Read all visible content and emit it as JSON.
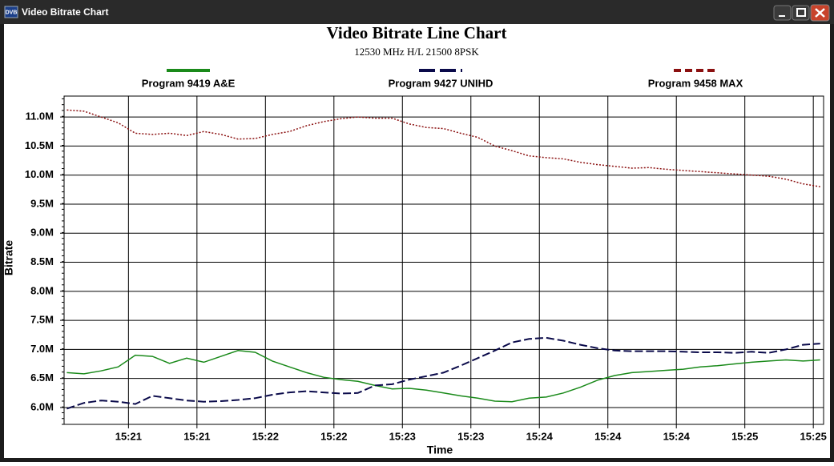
{
  "window": {
    "icon": "DVB",
    "title": "Video Bitrate Chart"
  },
  "chart_data": {
    "type": "line",
    "title": "Video Bitrate Line Chart",
    "subtitle": "12530 MHz H/L 21500 8PSK",
    "x_label": "Time",
    "y_label": "Bitrate",
    "grid": true,
    "xlim": [
      0.06,
      11.15
    ],
    "xticks": [
      {
        "value": 1,
        "label": "15:21"
      },
      {
        "value": 2,
        "label": "15:21"
      },
      {
        "value": 3,
        "label": "15:22"
      },
      {
        "value": 4,
        "label": "15:22"
      },
      {
        "value": 5,
        "label": "15:23"
      },
      {
        "value": 6,
        "label": "15:23"
      },
      {
        "value": 7,
        "label": "15:24"
      },
      {
        "value": 8,
        "label": "15:24"
      },
      {
        "value": 9,
        "label": "15:24"
      },
      {
        "value": 10,
        "label": "15:25"
      },
      {
        "value": 11,
        "label": "15:25"
      }
    ],
    "ylim": [
      5.71,
      11.36
    ],
    "yticks": [
      {
        "value": 6,
        "label": "6.0M"
      },
      {
        "value": 6.5,
        "label": "6.5M"
      },
      {
        "value": 7,
        "label": "7.0M"
      },
      {
        "value": 7.5,
        "label": "7.5M"
      },
      {
        "value": 8,
        "label": "8.0M"
      },
      {
        "value": 8.5,
        "label": "8.5M"
      },
      {
        "value": 9,
        "label": "9.0M"
      },
      {
        "value": 9.5,
        "label": "9.5M"
      },
      {
        "value": 10,
        "label": "10.0M"
      },
      {
        "value": 10.5,
        "label": "10.5M"
      },
      {
        "value": 11,
        "label": "11.0M"
      }
    ],
    "x": [
      0.1,
      0.35,
      0.6,
      0.85,
      1.1,
      1.35,
      1.6,
      1.85,
      2.1,
      2.35,
      2.6,
      2.85,
      3.1,
      3.35,
      3.6,
      3.85,
      4.1,
      4.35,
      4.6,
      4.85,
      5.1,
      5.35,
      5.6,
      5.85,
      6.1,
      6.35,
      6.6,
      6.85,
      7.1,
      7.35,
      7.6,
      7.85,
      8.1,
      8.35,
      8.6,
      8.85,
      9.1,
      9.35,
      9.6,
      9.85,
      10.1,
      10.35,
      10.6,
      10.85,
      11.1
    ],
    "series": [
      {
        "name": "Program 9419 A&E",
        "color": "#1a8a1a",
        "dash": "solid",
        "values": [
          6.6,
          6.58,
          6.63,
          6.7,
          6.9,
          6.88,
          6.76,
          6.85,
          6.78,
          6.88,
          6.98,
          6.95,
          6.8,
          6.7,
          6.6,
          6.52,
          6.48,
          6.45,
          6.38,
          6.32,
          6.33,
          6.3,
          6.25,
          6.2,
          6.16,
          6.11,
          6.1,
          6.16,
          6.18,
          6.25,
          6.35,
          6.47,
          6.55,
          6.6,
          6.62,
          6.64,
          6.66,
          6.7,
          6.72,
          6.75,
          6.78,
          6.8,
          6.82,
          6.8,
          6.82
        ]
      },
      {
        "name": "Program 9427 UNIHD",
        "color": "#0a0a4a",
        "dash": "dashed",
        "values": [
          5.98,
          6.08,
          6.12,
          6.1,
          6.06,
          6.2,
          6.16,
          6.12,
          6.1,
          6.11,
          6.13,
          6.16,
          6.22,
          6.26,
          6.28,
          6.26,
          6.24,
          6.25,
          6.38,
          6.4,
          6.48,
          6.54,
          6.6,
          6.72,
          6.85,
          6.98,
          7.12,
          7.18,
          7.2,
          7.15,
          7.08,
          7.02,
          6.98,
          6.97,
          6.97,
          6.97,
          6.96,
          6.95,
          6.95,
          6.94,
          6.96,
          6.94,
          7.0,
          7.08,
          7.1
        ]
      },
      {
        "name": "Program 9458 MAX",
        "color": "#8b1010",
        "dash": "dotted",
        "values": [
          11.12,
          11.1,
          11.0,
          10.9,
          10.72,
          10.7,
          10.72,
          10.68,
          10.75,
          10.7,
          10.62,
          10.63,
          10.7,
          10.75,
          10.85,
          10.92,
          10.97,
          11.0,
          10.98,
          10.98,
          10.88,
          10.82,
          10.8,
          10.72,
          10.65,
          10.5,
          10.42,
          10.33,
          10.3,
          10.28,
          10.22,
          10.18,
          10.15,
          10.12,
          10.13,
          10.1,
          10.08,
          10.06,
          10.04,
          10.02,
          10.0,
          9.98,
          9.93,
          9.85,
          9.8
        ]
      }
    ]
  }
}
